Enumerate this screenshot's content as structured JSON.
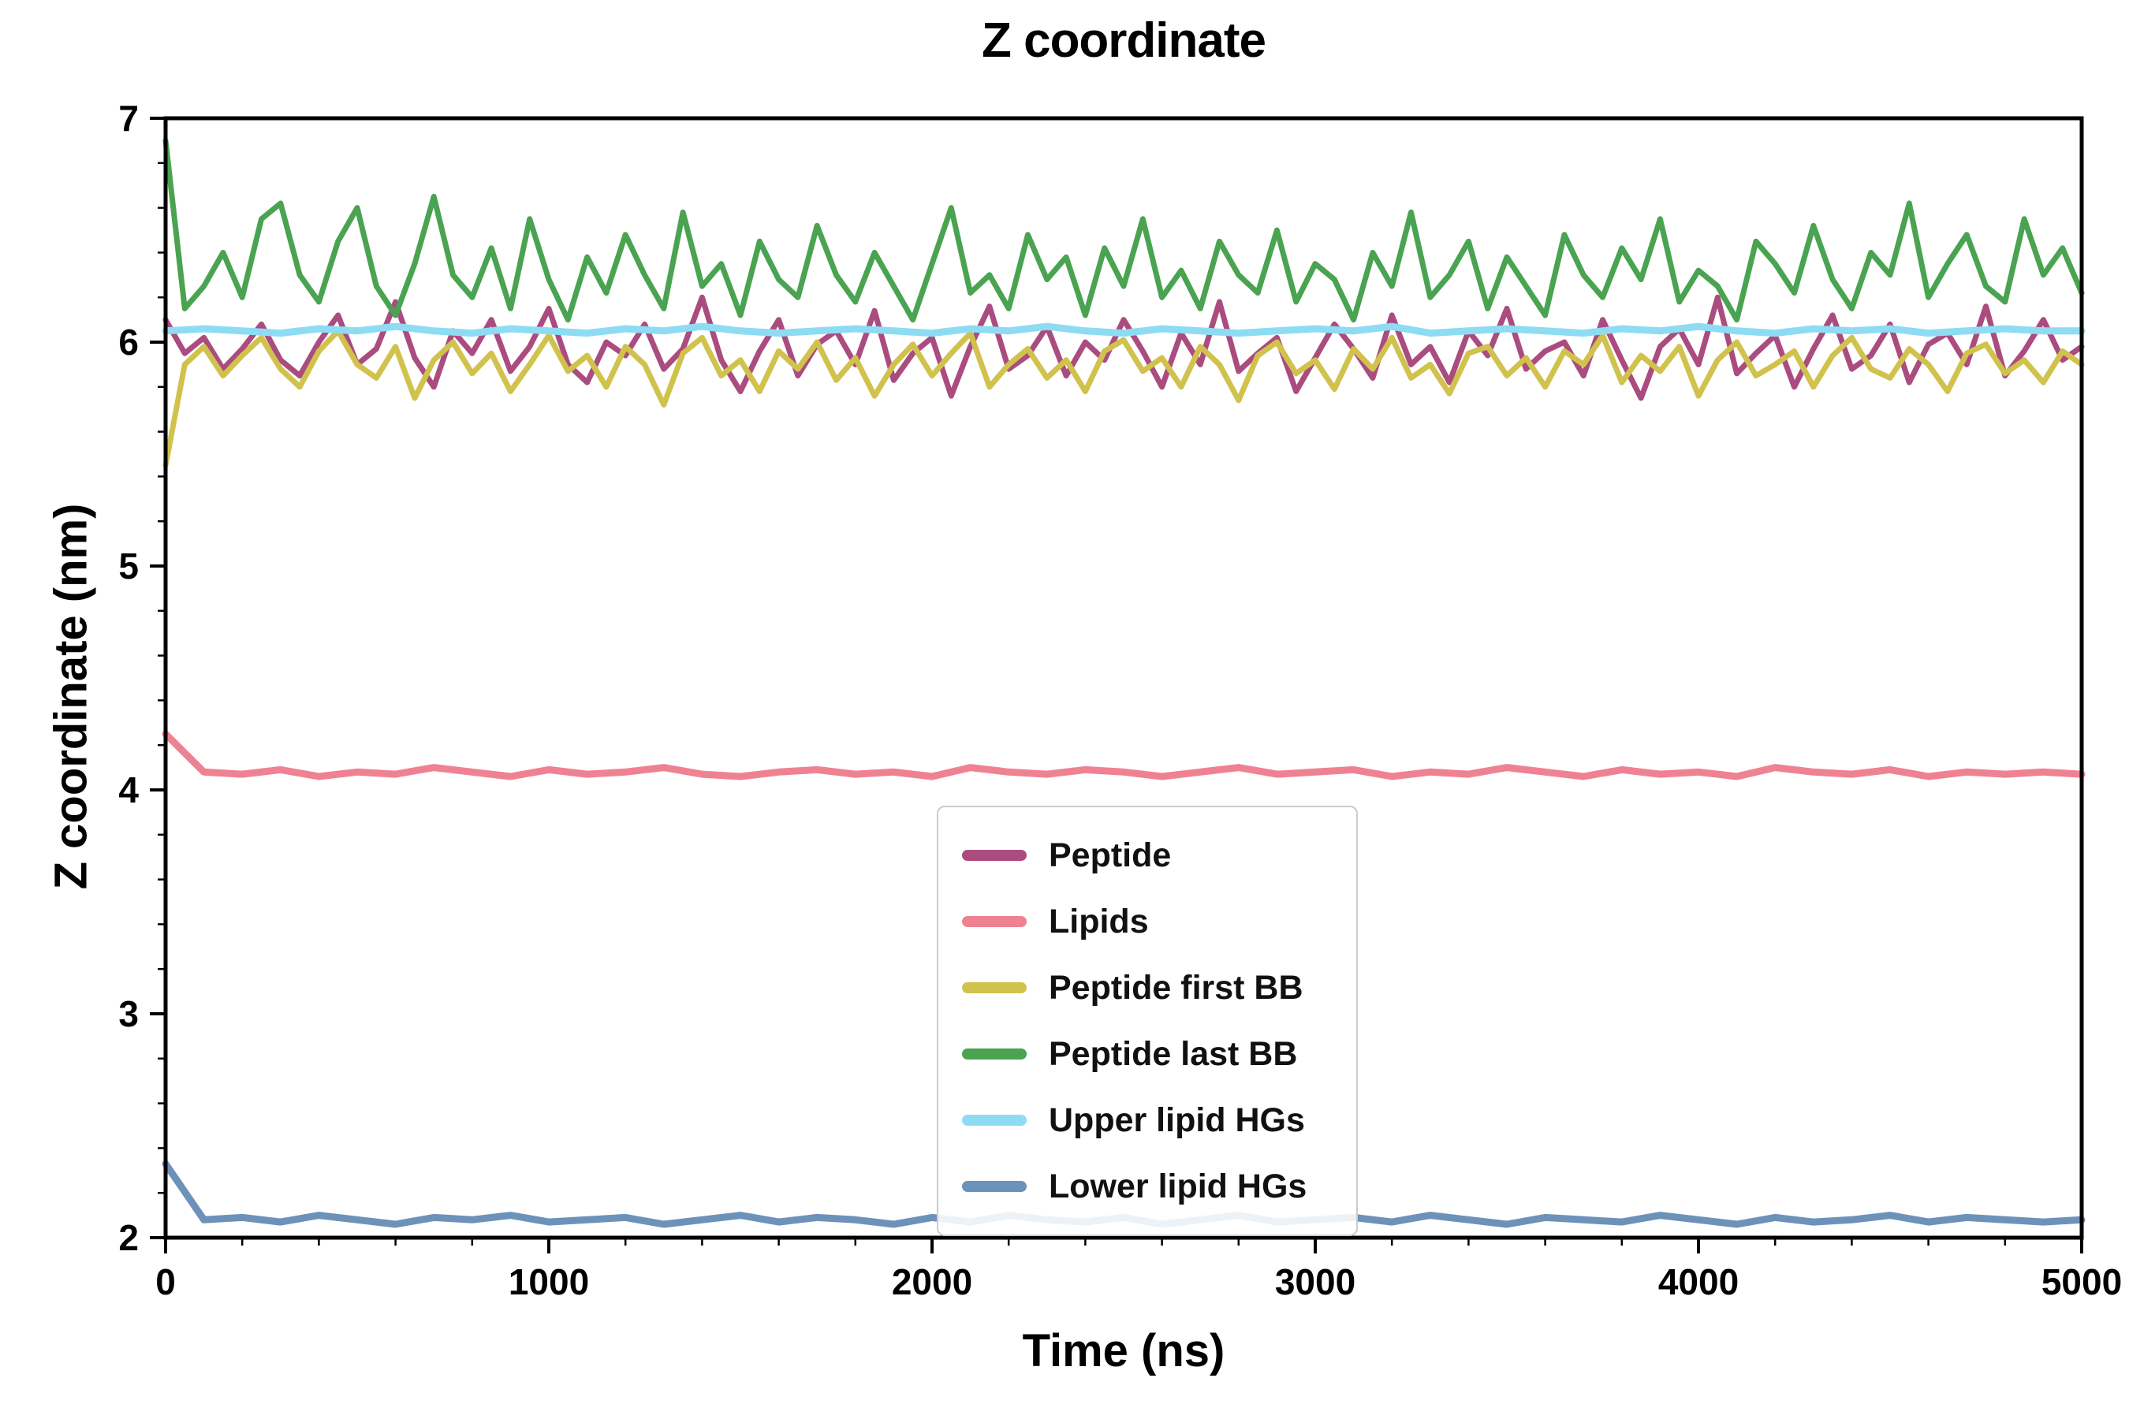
{
  "chart_data": {
    "type": "line",
    "title": "Z coordinate",
    "xlabel": "Time (ns)",
    "ylabel": "Z coordinate (nm)",
    "xlim": [
      0,
      5000
    ],
    "ylim": [
      2,
      7
    ],
    "x_ticks": [
      0,
      1000,
      2000,
      3000,
      4000,
      5000
    ],
    "y_ticks": [
      2,
      3,
      4,
      5,
      6,
      7
    ],
    "x_minor_step": 200,
    "y_minor_step": 0.2,
    "grid": false,
    "legend_position": "inside lower-center",
    "series": [
      {
        "name": "Peptide",
        "color": "#aa4c7f",
        "linewidth": 7,
        "x_start": 0,
        "x_step": 50,
        "y": [
          6.1,
          5.95,
          6.02,
          5.88,
          5.97,
          6.08,
          5.92,
          5.85,
          6.0,
          6.12,
          5.9,
          5.97,
          6.18,
          5.93,
          5.8,
          6.05,
          5.95,
          6.1,
          5.87,
          5.98,
          6.15,
          5.9,
          5.82,
          6.0,
          5.94,
          6.08,
          5.88,
          5.97,
          6.2,
          5.92,
          5.78,
          5.96,
          6.1,
          5.85,
          5.99,
          6.05,
          5.9,
          6.14,
          5.83,
          5.95,
          6.02,
          5.76,
          5.98,
          6.16,
          5.88,
          5.94,
          6.07,
          5.85,
          6.0,
          5.92,
          6.1,
          5.96,
          5.8,
          6.04,
          5.9,
          6.18,
          5.87,
          5.95,
          6.02,
          5.78,
          5.93,
          6.08,
          5.97,
          5.84,
          6.12,
          5.9,
          5.98,
          5.82,
          6.05,
          5.94,
          6.15,
          5.88,
          5.96,
          6.0,
          5.85,
          6.1,
          5.92,
          5.75,
          5.98,
          6.06,
          5.9,
          6.2,
          5.86,
          5.95,
          6.03,
          5.8,
          5.97,
          6.12,
          5.88,
          5.94,
          6.08,
          5.82,
          5.99,
          6.04,
          5.9,
          6.16,
          5.85,
          5.96,
          6.1,
          5.92,
          5.98
        ]
      },
      {
        "name": "Lipids",
        "color": "#ef8292",
        "linewidth": 9,
        "x_start": 0,
        "x_step": 100,
        "y": [
          4.25,
          4.08,
          4.07,
          4.09,
          4.06,
          4.08,
          4.07,
          4.1,
          4.08,
          4.06,
          4.09,
          4.07,
          4.08,
          4.1,
          4.07,
          4.06,
          4.08,
          4.09,
          4.07,
          4.08,
          4.06,
          4.1,
          4.08,
          4.07,
          4.09,
          4.08,
          4.06,
          4.08,
          4.1,
          4.07,
          4.08,
          4.09,
          4.06,
          4.08,
          4.07,
          4.1,
          4.08,
          4.06,
          4.09,
          4.07,
          4.08,
          4.06,
          4.1,
          4.08,
          4.07,
          4.09,
          4.06,
          4.08,
          4.07,
          4.08,
          4.07
        ]
      },
      {
        "name": "Peptide first BB",
        "color": "#d0c24d",
        "linewidth": 7,
        "x_start": 0,
        "x_step": 50,
        "y": [
          5.45,
          5.9,
          5.98,
          5.85,
          5.94,
          6.02,
          5.88,
          5.8,
          5.96,
          6.05,
          5.9,
          5.84,
          5.98,
          5.75,
          5.92,
          6.0,
          5.86,
          5.95,
          5.78,
          5.9,
          6.03,
          5.87,
          5.94,
          5.8,
          5.98,
          5.9,
          5.72,
          5.95,
          6.02,
          5.85,
          5.92,
          5.78,
          5.96,
          5.88,
          6.0,
          5.83,
          5.93,
          5.76,
          5.9,
          5.99,
          5.85,
          5.95,
          6.04,
          5.8,
          5.9,
          5.97,
          5.84,
          5.92,
          5.78,
          5.96,
          6.01,
          5.87,
          5.93,
          5.8,
          5.98,
          5.9,
          5.74,
          5.94,
          6.0,
          5.86,
          5.92,
          5.79,
          5.97,
          5.88,
          6.02,
          5.84,
          5.9,
          5.77,
          5.95,
          5.98,
          5.85,
          5.93,
          5.8,
          5.96,
          5.9,
          6.03,
          5.82,
          5.94,
          5.87,
          5.98,
          5.76,
          5.92,
          6.0,
          5.85,
          5.9,
          5.96,
          5.8,
          5.94,
          6.02,
          5.88,
          5.84,
          5.97,
          5.9,
          5.78,
          5.95,
          5.99,
          5.86,
          5.92,
          5.82,
          5.96,
          5.9
        ]
      },
      {
        "name": "Peptide last BB",
        "color": "#4aa351",
        "linewidth": 7,
        "x_start": 0,
        "x_step": 50,
        "y": [
          6.9,
          6.15,
          6.25,
          6.4,
          6.2,
          6.55,
          6.62,
          6.3,
          6.18,
          6.45,
          6.6,
          6.25,
          6.12,
          6.35,
          6.65,
          6.3,
          6.2,
          6.42,
          6.15,
          6.55,
          6.28,
          6.1,
          6.38,
          6.22,
          6.48,
          6.3,
          6.15,
          6.58,
          6.25,
          6.35,
          6.12,
          6.45,
          6.28,
          6.2,
          6.52,
          6.3,
          6.18,
          6.4,
          6.25,
          6.1,
          6.35,
          6.6,
          6.22,
          6.3,
          6.15,
          6.48,
          6.28,
          6.38,
          6.12,
          6.42,
          6.25,
          6.55,
          6.2,
          6.32,
          6.15,
          6.45,
          6.3,
          6.22,
          6.5,
          6.18,
          6.35,
          6.28,
          6.1,
          6.4,
          6.25,
          6.58,
          6.2,
          6.3,
          6.45,
          6.15,
          6.38,
          6.25,
          6.12,
          6.48,
          6.3,
          6.2,
          6.42,
          6.28,
          6.55,
          6.18,
          6.32,
          6.25,
          6.1,
          6.45,
          6.35,
          6.22,
          6.52,
          6.28,
          6.15,
          6.4,
          6.3,
          6.62,
          6.2,
          6.35,
          6.48,
          6.25,
          6.18,
          6.55,
          6.3,
          6.42,
          6.22
        ]
      },
      {
        "name": "Upper lipid HGs",
        "color": "#8edcf3",
        "linewidth": 9,
        "x_start": 0,
        "x_step": 100,
        "y": [
          6.05,
          6.06,
          6.05,
          6.04,
          6.06,
          6.05,
          6.07,
          6.05,
          6.04,
          6.06,
          6.05,
          6.04,
          6.06,
          6.05,
          6.07,
          6.05,
          6.04,
          6.05,
          6.06,
          6.05,
          6.04,
          6.06,
          6.05,
          6.07,
          6.05,
          6.04,
          6.06,
          6.05,
          6.04,
          6.05,
          6.06,
          6.05,
          6.07,
          6.04,
          6.05,
          6.06,
          6.05,
          6.04,
          6.06,
          6.05,
          6.07,
          6.05,
          6.04,
          6.06,
          6.05,
          6.06,
          6.04,
          6.05,
          6.06,
          6.05,
          6.05
        ]
      },
      {
        "name": "Lower lipid HGs",
        "color": "#6d92ba",
        "linewidth": 9,
        "x_start": 0,
        "x_step": 100,
        "y": [
          2.33,
          2.08,
          2.09,
          2.07,
          2.1,
          2.08,
          2.06,
          2.09,
          2.08,
          2.1,
          2.07,
          2.08,
          2.09,
          2.06,
          2.08,
          2.1,
          2.07,
          2.09,
          2.08,
          2.06,
          2.09,
          2.07,
          2.1,
          2.08,
          2.07,
          2.09,
          2.06,
          2.08,
          2.1,
          2.07,
          2.08,
          2.09,
          2.07,
          2.1,
          2.08,
          2.06,
          2.09,
          2.08,
          2.07,
          2.1,
          2.08,
          2.06,
          2.09,
          2.07,
          2.08,
          2.1,
          2.07,
          2.09,
          2.08,
          2.07,
          2.08
        ]
      }
    ]
  }
}
